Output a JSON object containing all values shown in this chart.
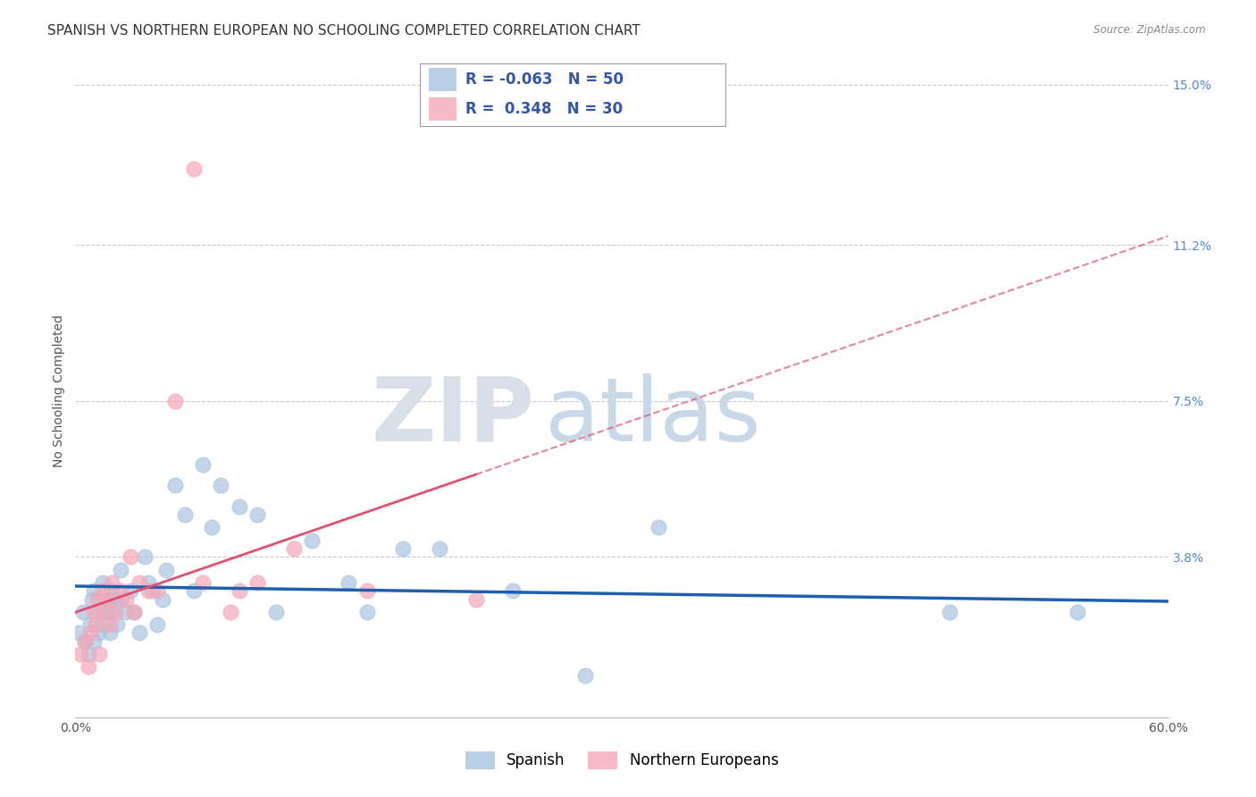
{
  "title": "SPANISH VS NORTHERN EUROPEAN NO SCHOOLING COMPLETED CORRELATION CHART",
  "source": "Source: ZipAtlas.com",
  "ylabel": "No Schooling Completed",
  "xlim": [
    0.0,
    0.6
  ],
  "ylim": [
    0.0,
    0.155
  ],
  "yticks": [
    0.0,
    0.038,
    0.075,
    0.112,
    0.15
  ],
  "ytick_labels": [
    "",
    "3.8%",
    "7.5%",
    "11.2%",
    "15.0%"
  ],
  "xticks": [
    0.0,
    0.1,
    0.2,
    0.3,
    0.4,
    0.5,
    0.6
  ],
  "xtick_labels": [
    "0.0%",
    "",
    "",
    "",
    "",
    "",
    "60.0%"
  ],
  "spanish_R": -0.063,
  "spanish_N": 50,
  "northern_R": 0.348,
  "northern_N": 30,
  "spanish_color": "#A8C4E0",
  "northern_color": "#F4A8B8",
  "spanish_line_color": "#1F5FAD",
  "northern_line_color": "#E05070",
  "background_color": "#FFFFFF",
  "grid_color": "#C8C8D8",
  "watermark_color": "#DDE4EE",
  "spanish_x": [
    0.002,
    0.004,
    0.005,
    0.007,
    0.008,
    0.009,
    0.01,
    0.01,
    0.012,
    0.013,
    0.015,
    0.015,
    0.017,
    0.018,
    0.019,
    0.02,
    0.02,
    0.022,
    0.023,
    0.025,
    0.025,
    0.028,
    0.03,
    0.032,
    0.035,
    0.038,
    0.04,
    0.042,
    0.045,
    0.048,
    0.05,
    0.055,
    0.06,
    0.065,
    0.07,
    0.075,
    0.08,
    0.09,
    0.1,
    0.11,
    0.13,
    0.15,
    0.16,
    0.18,
    0.2,
    0.24,
    0.28,
    0.32,
    0.48,
    0.55
  ],
  "spanish_y": [
    0.02,
    0.025,
    0.018,
    0.015,
    0.022,
    0.028,
    0.03,
    0.018,
    0.025,
    0.02,
    0.032,
    0.022,
    0.028,
    0.025,
    0.02,
    0.03,
    0.025,
    0.028,
    0.022,
    0.035,
    0.028,
    0.025,
    0.03,
    0.025,
    0.02,
    0.038,
    0.032,
    0.03,
    0.022,
    0.028,
    0.035,
    0.055,
    0.048,
    0.03,
    0.06,
    0.045,
    0.055,
    0.05,
    0.048,
    0.025,
    0.042,
    0.032,
    0.025,
    0.04,
    0.04,
    0.03,
    0.01,
    0.045,
    0.025,
    0.025
  ],
  "northern_x": [
    0.003,
    0.005,
    0.007,
    0.008,
    0.01,
    0.011,
    0.012,
    0.013,
    0.015,
    0.016,
    0.018,
    0.019,
    0.02,
    0.022,
    0.025,
    0.028,
    0.03,
    0.032,
    0.035,
    0.04,
    0.045,
    0.055,
    0.065,
    0.07,
    0.085,
    0.09,
    0.1,
    0.12,
    0.16,
    0.22
  ],
  "northern_y": [
    0.015,
    0.018,
    0.012,
    0.02,
    0.025,
    0.022,
    0.028,
    0.015,
    0.03,
    0.025,
    0.028,
    0.022,
    0.032,
    0.025,
    0.03,
    0.028,
    0.038,
    0.025,
    0.032,
    0.03,
    0.03,
    0.075,
    0.13,
    0.032,
    0.025,
    0.03,
    0.032,
    0.04,
    0.03,
    0.028
  ],
  "title_fontsize": 11,
  "axis_label_fontsize": 10,
  "tick_fontsize": 10,
  "legend_fontsize": 12
}
